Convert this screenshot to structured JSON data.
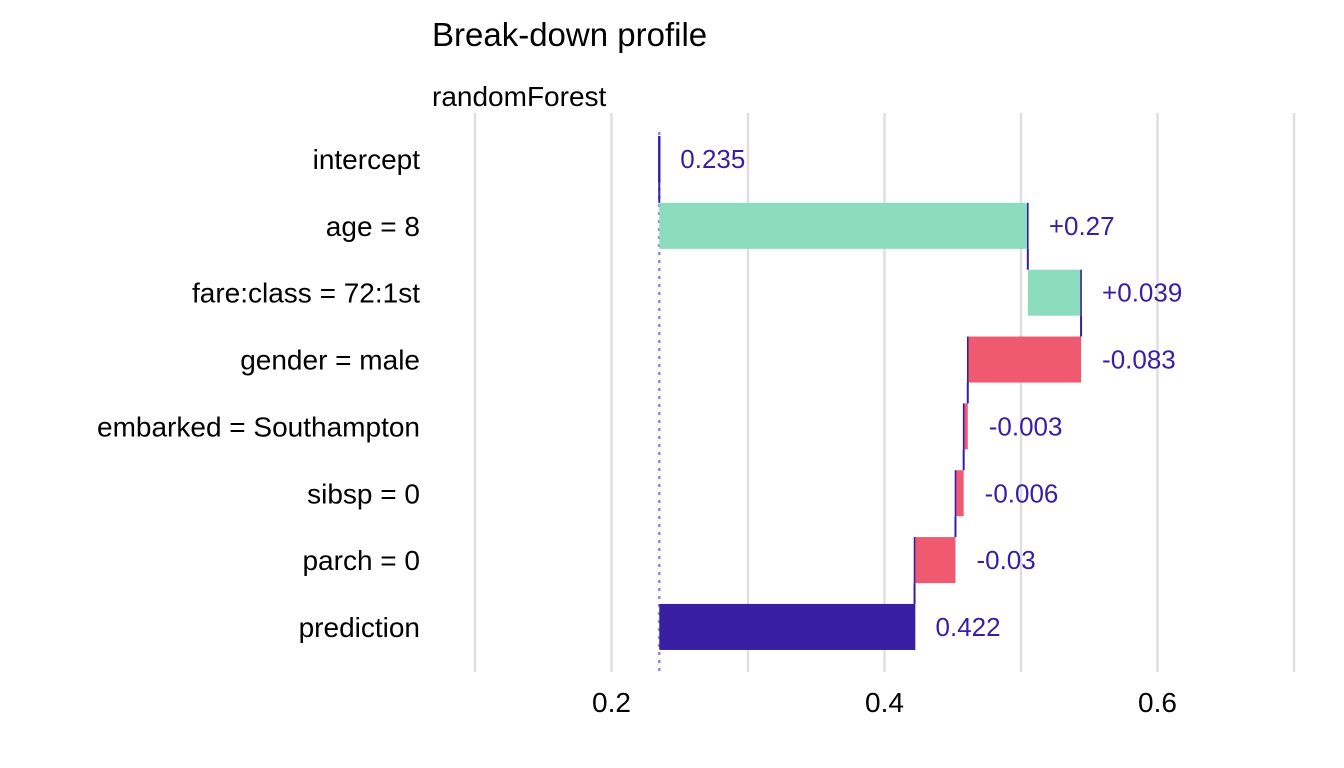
{
  "chart_data": {
    "type": "bar",
    "subtype": "waterfall",
    "title": "Break-down profile",
    "subtitle": "randomForest",
    "xlabel": "",
    "ylabel": "",
    "xlim": [
      0.1,
      0.7
    ],
    "x_ticks": [
      0.2,
      0.4,
      0.6
    ],
    "x_tick_labels": [
      "0.2",
      "0.4",
      "0.6"
    ],
    "x_minor_gridlines": [
      0.1,
      0.3,
      0.5,
      0.7
    ],
    "baseline": 0.235,
    "categories": [
      "intercept",
      "age = 8",
      "fare:class = 72:1st",
      "gender = male",
      "embarked = Southampton",
      "sibsp = 0",
      "parch = 0",
      "prediction"
    ],
    "bars": [
      {
        "label": "intercept",
        "start": 0.235,
        "end": 0.235,
        "value_label": "0.235",
        "kind": "intercept"
      },
      {
        "label": "age = 8",
        "start": 0.235,
        "end": 0.505,
        "value_label": "+0.27",
        "kind": "positive"
      },
      {
        "label": "fare:class = 72:1st",
        "start": 0.505,
        "end": 0.544,
        "value_label": "+0.039",
        "kind": "positive"
      },
      {
        "label": "gender = male",
        "start": 0.544,
        "end": 0.461,
        "value_label": "-0.083",
        "kind": "negative"
      },
      {
        "label": "embarked = Southampton",
        "start": 0.461,
        "end": 0.458,
        "value_label": "-0.003",
        "kind": "negative"
      },
      {
        "label": "sibsp = 0",
        "start": 0.458,
        "end": 0.452,
        "value_label": "-0.006",
        "kind": "negative"
      },
      {
        "label": "parch = 0",
        "start": 0.452,
        "end": 0.422,
        "value_label": "-0.03",
        "kind": "negative"
      },
      {
        "label": "prediction",
        "start": 0.235,
        "end": 0.422,
        "value_label": "0.422",
        "kind": "prediction"
      }
    ],
    "colors": {
      "positive": "#8bdcbe",
      "negative": "#f05a71",
      "prediction": "#371ea3",
      "connector": "#371ea3",
      "value_text": "#371ea3",
      "baseline_line": "#8f86d6"
    },
    "legend": "none",
    "grid": true
  }
}
